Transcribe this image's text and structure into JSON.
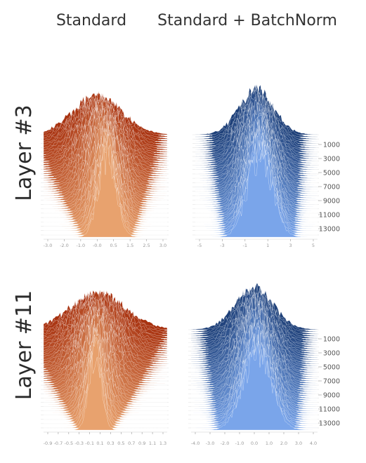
{
  "chart_data": {
    "type": "ridgeline",
    "column_titles": [
      "Standard",
      "Standard + BatchNorm"
    ],
    "row_labels": [
      "Layer #3",
      "Layer #11"
    ],
    "y_ticks": [
      "1000",
      "3000",
      "5000",
      "7000",
      "9000",
      "11000",
      "13000"
    ],
    "panels": [
      {
        "row": 0,
        "col": 0,
        "x_ticks": [
          "-3.0",
          "-2.0",
          "-1.0",
          "-0.0",
          "0.5",
          "1.5",
          "2.5",
          "3.0"
        ],
        "x_range": [
          -3.2,
          3.2
        ],
        "num_ridges": 48,
        "mean_start": -0.4,
        "mean_end": 0.1,
        "sd_start": 1.3,
        "sd_end": 0.45,
        "peak_start": 0.35,
        "peak_end": 1.0,
        "top_color": "#a83210",
        "bottom_color": "#e8a26e"
      },
      {
        "row": 0,
        "col": 1,
        "x_ticks": [
          "-5",
          "-3",
          "-1",
          "1",
          "3",
          "5"
        ],
        "x_range": [
          -5.5,
          5.5
        ],
        "num_ridges": 48,
        "mean_start": 0.0,
        "mean_end": 0.3,
        "sd_start": 1.6,
        "sd_end": 1.1,
        "peak_start": 0.4,
        "peak_end": 1.0,
        "top_color": "#1d3f78",
        "bottom_color": "#7aa5ea"
      },
      {
        "row": 1,
        "col": 0,
        "x_ticks": [
          "-0.9",
          "-0.7",
          "-0.5",
          "-0.3",
          "-0.1",
          "0.1",
          "0.3",
          "0.5",
          "0.7",
          "0.9",
          "1.1",
          "1.3"
        ],
        "x_range": [
          -1.0,
          1.4
        ],
        "num_ridges": 48,
        "mean_start": 0.05,
        "mean_end": 0.0,
        "sd_start": 0.55,
        "sd_end": 0.12,
        "peak_start": 0.35,
        "peak_end": 1.0,
        "top_color": "#a83210",
        "bottom_color": "#e8a26e"
      },
      {
        "row": 1,
        "col": 1,
        "x_ticks": [
          "-4.0",
          "-3.0",
          "-2.0",
          "-1.0",
          "0.0",
          "1.0",
          "2.0",
          "3.0",
          "4.0"
        ],
        "x_range": [
          -4.5,
          4.5
        ],
        "num_ridges": 48,
        "mean_start": 0.0,
        "mean_end": 0.2,
        "sd_start": 1.4,
        "sd_end": 1.0,
        "peak_start": 0.4,
        "peak_end": 1.0,
        "top_color": "#1d3f78",
        "bottom_color": "#7aa5ea"
      }
    ]
  }
}
